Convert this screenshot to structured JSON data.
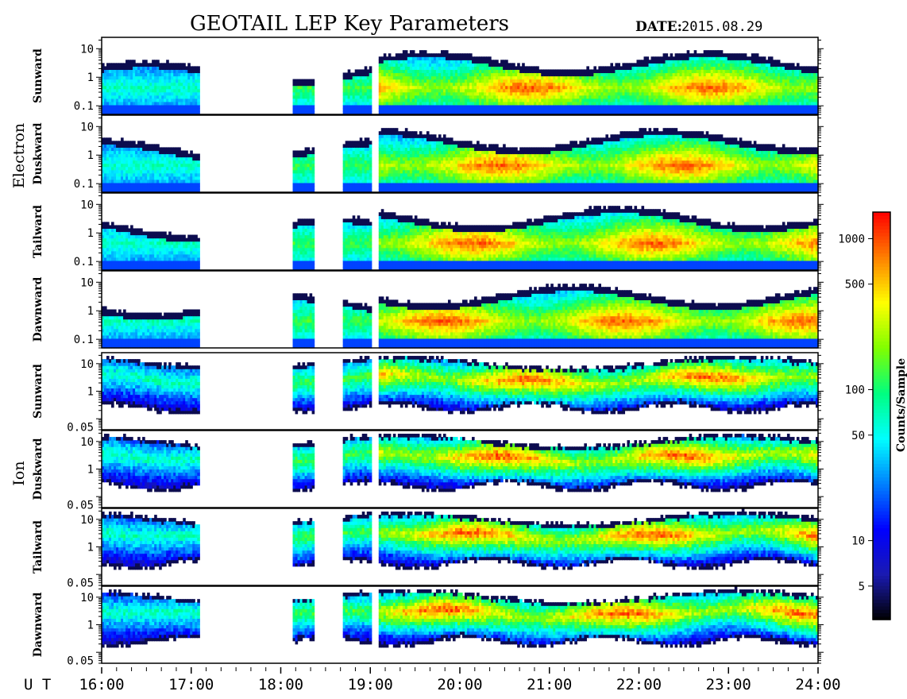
{
  "title": "GEOTAIL LEP Key Parameters",
  "date_label": "DATE:",
  "date_value": "2015.08.29",
  "x_axis": {
    "label": "U T",
    "ticks": [
      "16:00",
      "17:00",
      "18:00",
      "19:00",
      "20:00",
      "21:00",
      "22:00",
      "23:00",
      "24:00"
    ]
  },
  "groups": [
    {
      "name": "Electron",
      "panels": [
        "Sunward",
        "Duskward",
        "Tailward",
        "Dawnward"
      ]
    },
    {
      "name": "Ion",
      "panels": [
        "Sunward",
        "Duskward",
        "Tailward",
        "Dawnward"
      ]
    }
  ],
  "colorbar": {
    "label": "Counts/Sample",
    "scale": "log",
    "range": [
      3,
      1500
    ],
    "ticks": [
      "1000",
      "500",
      "100",
      "50",
      "10",
      "5"
    ],
    "colormap": [
      "#000000",
      "#1a1ab0",
      "#0000ff",
      "#0080ff",
      "#00ffff",
      "#00ff80",
      "#80ff00",
      "#ffff00",
      "#ff8000",
      "#ff0000"
    ]
  },
  "chart_data": {
    "type": "heatmap",
    "title": "GEOTAIL LEP Key Parameters",
    "x_range_hours": [
      16,
      24
    ],
    "electron_y_ticks": [
      "10",
      "1",
      "0.1"
    ],
    "ion_y_ticks": [
      "10",
      "1",
      "0.05"
    ],
    "electron_y_range": [
      0.05,
      25
    ],
    "ion_y_range": [
      0.04,
      25
    ],
    "data_coverage_ut": [
      {
        "start": "16:00",
        "end": "17:05"
      },
      {
        "start": "18:08",
        "end": "18:22"
      },
      {
        "start": "18:42",
        "end": "19:00"
      },
      {
        "start": "19:05",
        "end": "24:00"
      }
    ]
  }
}
